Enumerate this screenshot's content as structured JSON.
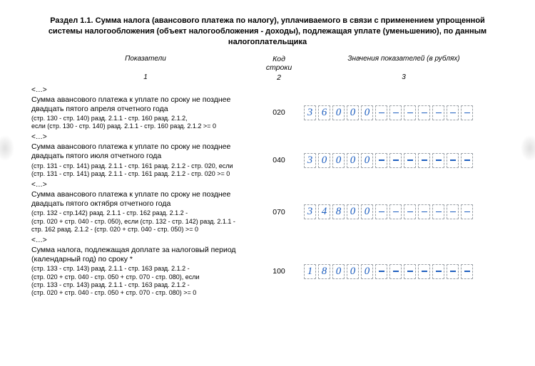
{
  "title": "Раздел 1.1. Сумма налога (авансового платежа по налогу), уплачиваемого в связи с применением упрощенной системы налогообложения (объект налогообложения - доходы), подлежащая уплате (уменьшению), по данным налогоплательщика",
  "headers": {
    "indicator": "Показатели",
    "code": "Код строки",
    "value": "Значения показателей (в рублях)"
  },
  "subheaders": {
    "indicator": "1",
    "code": "2",
    "value": "3"
  },
  "ellipsis": "<…>",
  "cell_style": {
    "total_cells": 12,
    "border_color": "#9aa0a6",
    "digit_color": "#1f5fbf",
    "dash_color": "#1f5fbf",
    "font_family": "Times New Roman italic"
  },
  "rows": [
    {
      "code": "020",
      "main": "Сумма авансового платежа к уплате по сроку не позднее двадцать пятого апреля отчетного года",
      "sub": "(стр. 130 - стр. 140) разд. 2.1.1 - стр. 160 разд. 2.1.2,\nесли (стр. 130 - стр. 140) разд. 2.1.1 - стр. 160 разд. 2.1.2 >= 0",
      "value": "36000"
    },
    {
      "code": "040",
      "main": "Сумма авансового платежа к уплате по сроку не позднее двадцать пятого июля отчетного года",
      "sub": "(стр. 131 - стр. 141) разд. 2.1.1 - стр. 161 разд. 2.1.2 - стр. 020, если\n(стр. 131 - стр. 141) разд. 2.1.1 - стр. 161 разд. 2.1.2 - стр. 020 >= 0",
      "value": "30000"
    },
    {
      "code": "070",
      "main": "Сумма авансового платежа к уплате по сроку не позднее двадцать пятого октября отчетного года",
      "sub": "(стр. 132 - стр.142) разд. 2.1.1 - стр. 162 разд. 2.1.2 -\n(стр. 020 + стр. 040 - стр. 050), если (стр. 132 - стр. 142) разд. 2.1.1 -\nстр. 162 разд. 2.1.2 - (стр. 020 + стр. 040 - стр. 050) >= 0",
      "value": "34800"
    },
    {
      "code": "100",
      "main": "Сумма налога, подлежащая доплате за налоговый период (календарный год) по сроку *",
      "sub": "(стр. 133 - стр. 143) разд. 2.1.1 - стр. 163 разд. 2.1.2 -\n(стр. 020 + стр. 040 - стр. 050 + стр. 070 - стр. 080), если\n(стр. 133 - стр. 143) разд. 2.1.1 - стр. 163 разд. 2.1.2 -\n(стр. 020 + стр. 040 - стр. 050 + стр. 070 - стр. 080) >= 0",
      "value": "18000"
    }
  ]
}
